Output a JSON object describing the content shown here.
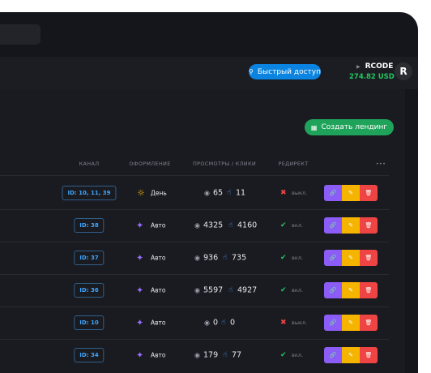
{
  "header": {
    "quick_access": "Быстрый доступ",
    "user": "RCODE",
    "balance": "274.82 USD",
    "avatar": "R"
  },
  "create_button": "Создать лендинг",
  "table": {
    "columns": [
      "КАНАЛ",
      "ОФОРМЛЕНИЕ",
      "ПРОСМОТРЫ / КЛИКИ",
      "РЕДИРЕКТ",
      "•••"
    ],
    "rows": [
      {
        "channel": "ID: 10, 11, 39",
        "design": {
          "label": "День",
          "icon": "sun"
        },
        "views": 65,
        "clicks": 11,
        "redirect": {
          "label": "выкл.",
          "on": false
        }
      },
      {
        "channel": "ID: 38",
        "design": {
          "label": "Авто",
          "icon": "wand"
        },
        "views": 4325,
        "clicks": 4160,
        "redirect": {
          "label": "вкл.",
          "on": true
        }
      },
      {
        "channel": "ID: 37",
        "design": {
          "label": "Авто",
          "icon": "wand"
        },
        "views": 936,
        "clicks": 735,
        "redirect": {
          "label": "вкл.",
          "on": true
        }
      },
      {
        "channel": "ID: 36",
        "design": {
          "label": "Авто",
          "icon": "wand"
        },
        "views": 5597,
        "clicks": 4927,
        "redirect": {
          "label": "вкл.",
          "on": true
        }
      },
      {
        "channel": "ID: 10",
        "design": {
          "label": "Авто",
          "icon": "wand"
        },
        "views": 0,
        "clicks": 0,
        "redirect": {
          "label": "выкл.",
          "on": false
        }
      },
      {
        "channel": "ID: 34",
        "design": {
          "label": "Авто",
          "icon": "wand"
        },
        "views": 179,
        "clicks": 77,
        "redirect": {
          "label": "вкл.",
          "on": true
        }
      }
    ]
  }
}
